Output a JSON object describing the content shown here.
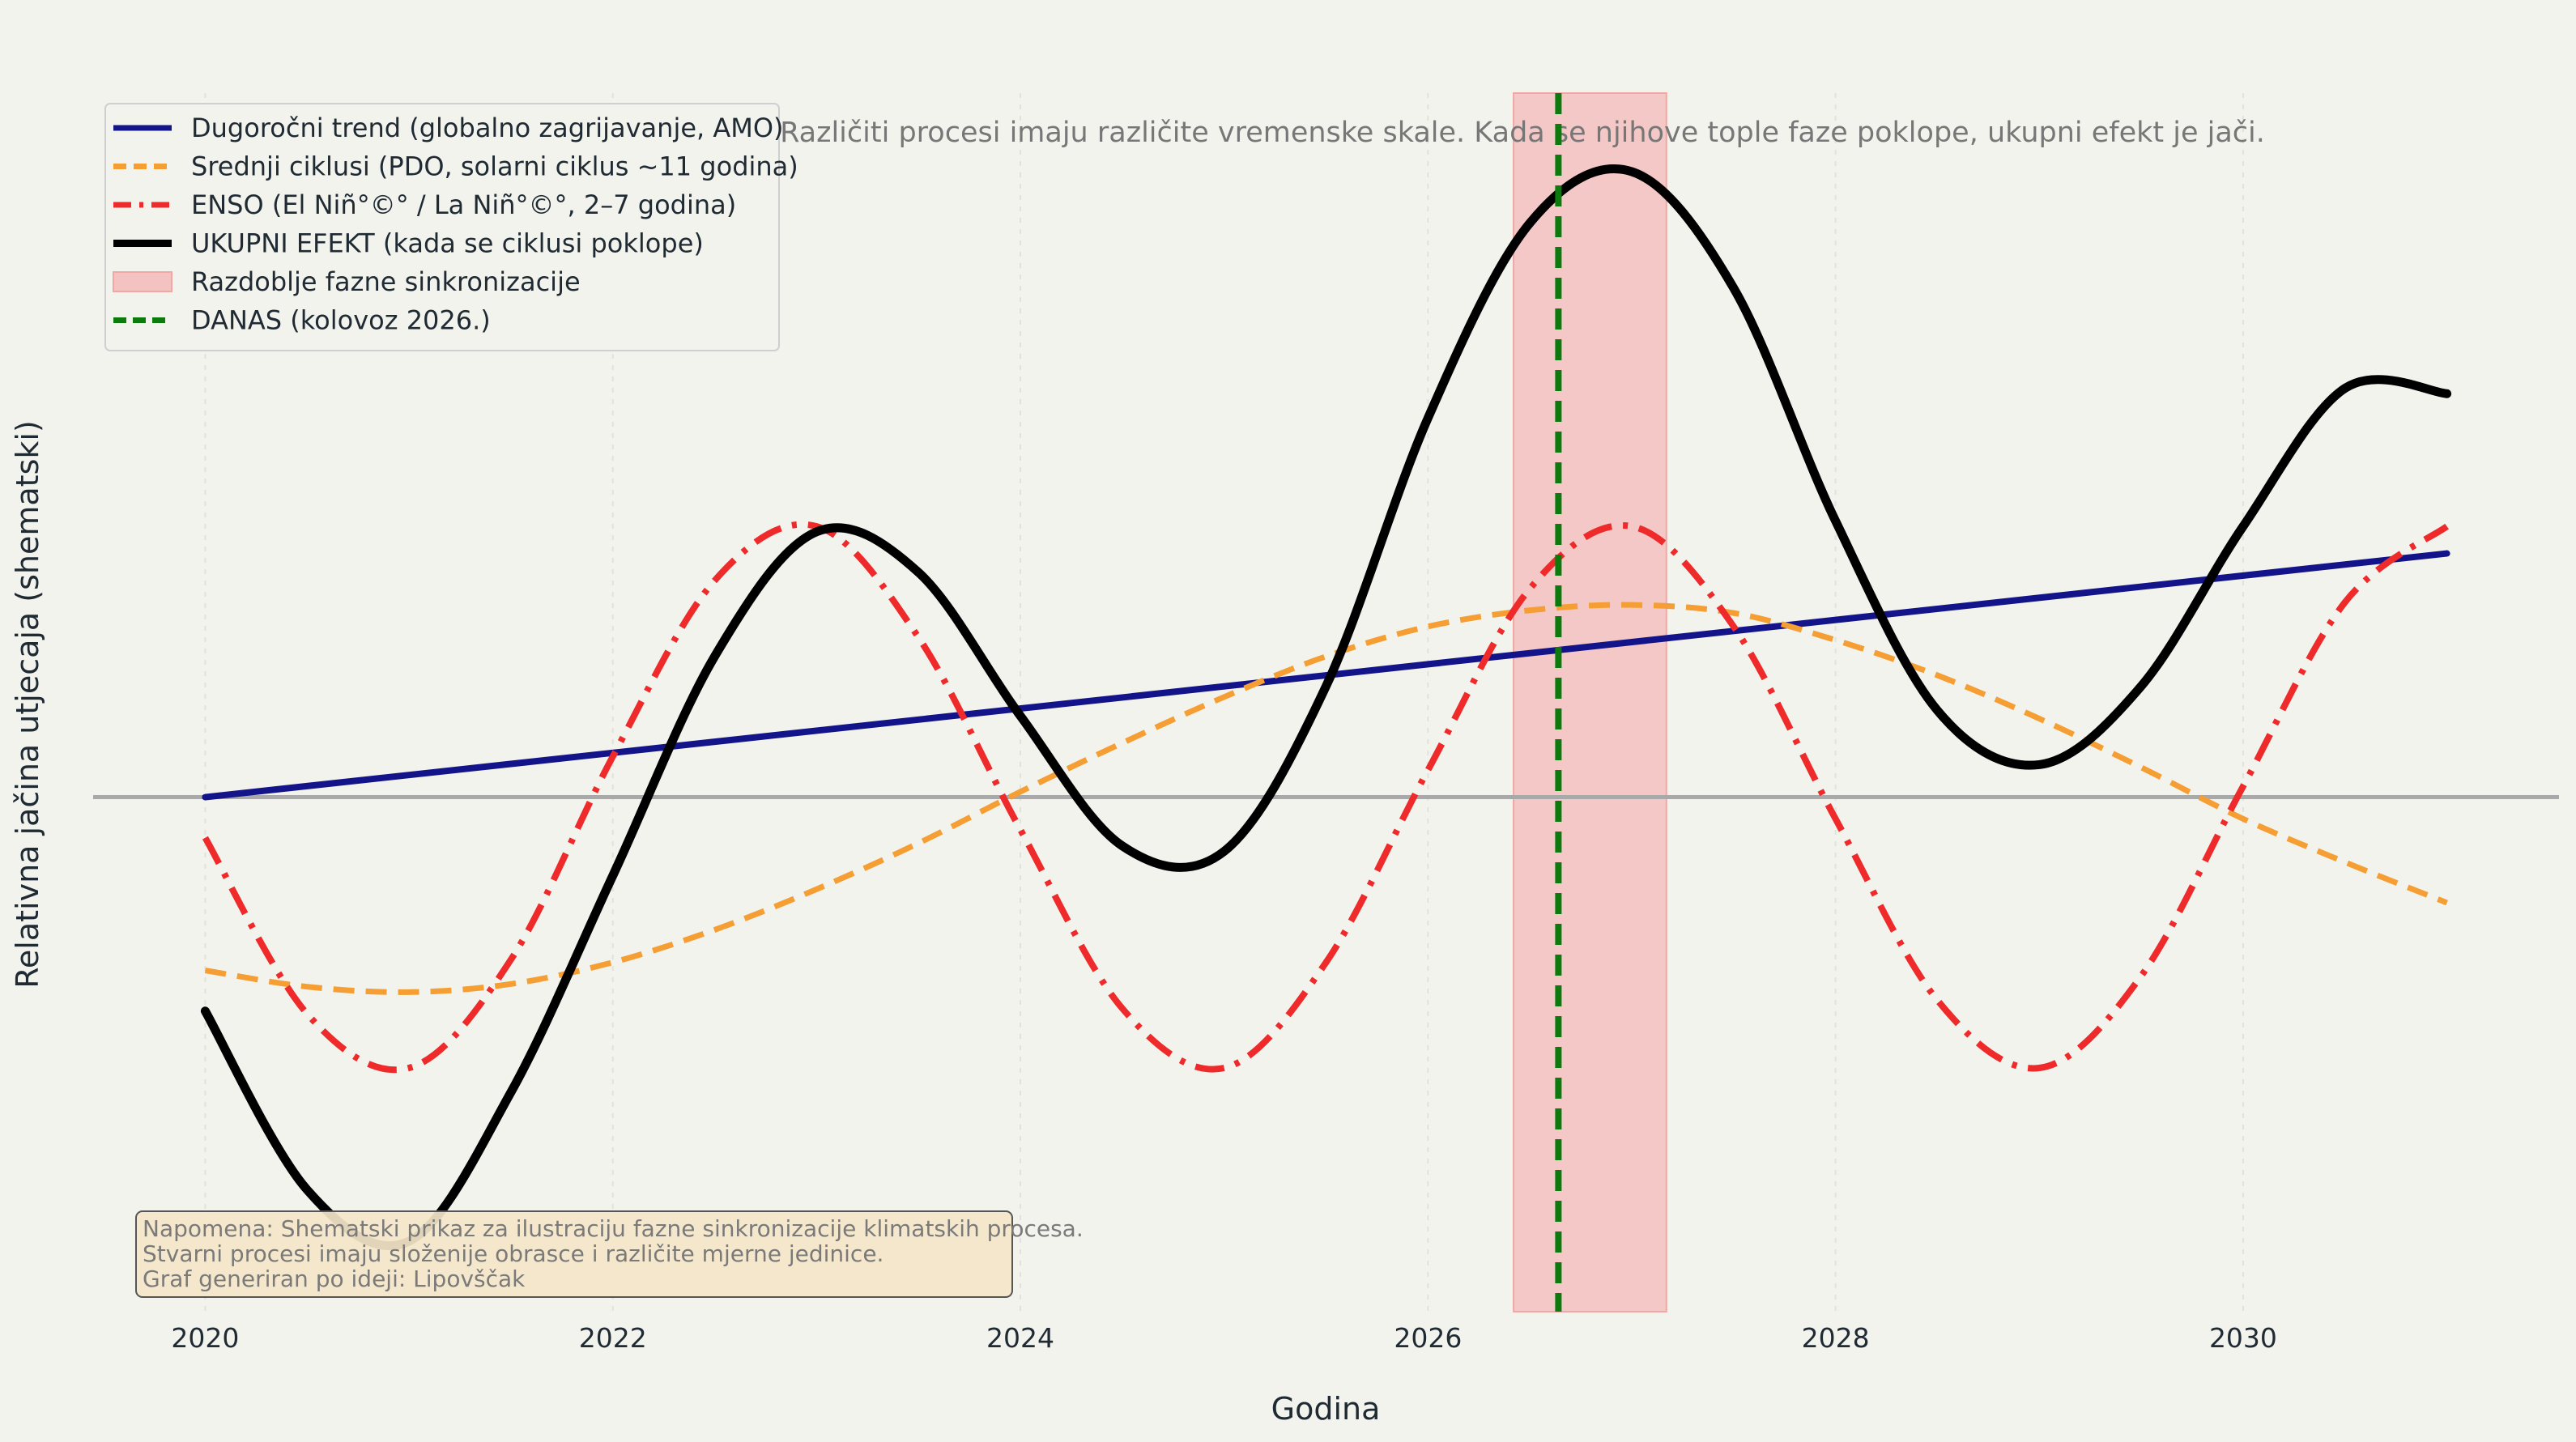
{
  "chart_data": {
    "type": "line",
    "subtitle": "Različiti procesi imaju različite vremenske skale. Kada se njihove tople faze poklope, ukupni efekt je jači.",
    "xlabel": "Godina",
    "ylabel": "Relativna jačina utjecaja (shematski)",
    "xlim": [
      2019.45,
      2031.55
    ],
    "ylim": [
      -1.9,
      2.6
    ],
    "x_ticks": [
      2020,
      2022,
      2024,
      2026,
      2028,
      2030
    ],
    "x_tick_labels": [
      "2020",
      "2022",
      "2024",
      "2026",
      "2028",
      "2030"
    ],
    "grid": true,
    "legend_position": "top-left",
    "zero_line": 0,
    "series": [
      {
        "name": "Dugoročni trend (globalno zagrijavanje, AMO)",
        "color": "#14148a",
        "style": "solid",
        "x": [
          2020,
          2031
        ],
        "y": [
          0.0,
          0.9
        ]
      },
      {
        "name": "Srednji ciklusi (PDO, solarni ciklus ~11 godina)",
        "color": "#f59e33",
        "style": "dashed",
        "x": [
          2020,
          2020.5,
          2021,
          2021.5,
          2022,
          2022.5,
          2023,
          2023.5,
          2024,
          2024.5,
          2025,
          2025.5,
          2026,
          2026.5,
          2027,
          2027.5,
          2028,
          2028.5,
          2029,
          2029.5,
          2030,
          2030.5,
          2031
        ],
        "y": [
          -0.64,
          -0.7,
          -0.72,
          -0.69,
          -0.61,
          -0.49,
          -0.34,
          -0.17,
          0.02,
          0.2,
          0.37,
          0.52,
          0.63,
          0.69,
          0.71,
          0.68,
          0.58,
          0.45,
          0.29,
          0.11,
          -0.08,
          -0.24,
          -0.39
        ]
      },
      {
        "name": "ENSO (El Niñ°©° / La Niñ°©°, 2–7 godina)",
        "color": "#ee2a2a",
        "style": "dashdot",
        "x": [
          2020,
          2020.5,
          2021,
          2021.5,
          2022,
          2022.5,
          2023,
          2023.5,
          2024,
          2024.5,
          2025,
          2025.5,
          2026,
          2026.5,
          2027,
          2027.5,
          2028,
          2028.5,
          2029,
          2029.5,
          2030,
          2030.5,
          2031
        ],
        "y": [
          -0.15,
          -0.8,
          -1.0,
          -0.6,
          0.15,
          0.8,
          1.0,
          0.59,
          -0.12,
          -0.78,
          -1.0,
          -0.61,
          0.1,
          0.77,
          1.0,
          0.63,
          -0.08,
          -0.75,
          -1.0,
          -0.66,
          0.04,
          0.72,
          1.0
        ]
      },
      {
        "name": "UKUPNI EFEKT (kada se ciklusi poklope)",
        "color": "#000000",
        "style": "solid-thick",
        "x": [
          2020,
          2020.5,
          2021,
          2021.5,
          2022,
          2022.5,
          2023,
          2023.5,
          2024,
          2024.5,
          2025,
          2025.5,
          2026,
          2026.5,
          2027,
          2027.5,
          2028,
          2028.5,
          2029,
          2029.5,
          2030,
          2030.5,
          2031
        ],
        "y": [
          -0.79,
          -1.45,
          -1.64,
          -1.09,
          -0.29,
          0.52,
          0.98,
          0.83,
          0.3,
          -0.18,
          -0.2,
          0.41,
          1.4,
          2.12,
          2.31,
          1.88,
          1.02,
          0.32,
          0.12,
          0.41,
          1.0,
          1.51,
          1.49
        ]
      }
    ],
    "span": {
      "name": "Razdoblje fazne sinkronizacije",
      "x0": 2026.42,
      "x1": 2027.17,
      "color": "#f4c3c1"
    },
    "vline": {
      "name": "DANAS (kolovoz 2026.)",
      "x": 2026.64,
      "color": "#0d7a0d"
    },
    "note_lines": [
      "Napomena: Shematski prikaz za ilustraciju fazne sinkronizacije klimatskih procesa.",
      "Stvarni procesi imaju složenije obrasce i različite mjerne jedinice.",
      "Graf generiran po ideji: Lipovščak"
    ]
  }
}
